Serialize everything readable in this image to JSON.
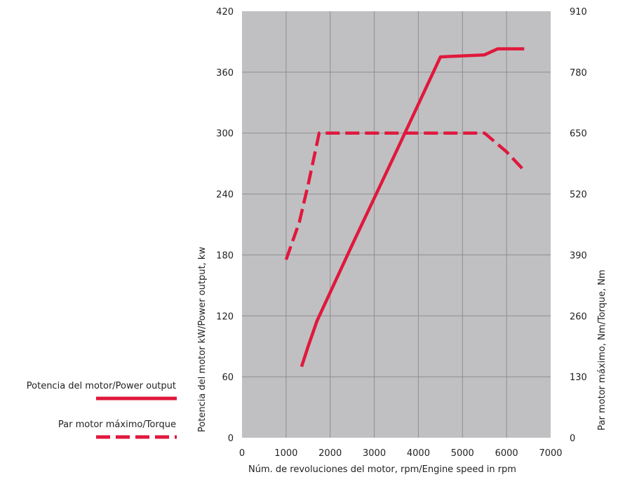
{
  "chart_data": {
    "type": "line",
    "colors": {
      "plot_bg": "#c0c0c2",
      "grid": "#8e8e90",
      "series": "#e0183c"
    },
    "x_axis": {
      "label": "Núm. de revoluciones del motor, rpm/Engine speed in rpm",
      "range": [
        0,
        7000
      ],
      "ticks": [
        "0",
        "1000",
        "2000",
        "3000",
        "4000",
        "5000",
        "6000",
        "7000"
      ]
    },
    "y_axis_left": {
      "label": "Potencia del motor kW/Power output, kw",
      "range": [
        0,
        420
      ],
      "ticks": [
        "0",
        "60",
        "120",
        "180",
        "240",
        "300",
        "360",
        "420"
      ]
    },
    "y_axis_right": {
      "label": "Par motor máximo, Nm/Torque, Nm",
      "range": [
        0,
        910
      ],
      "ticks": [
        "0",
        "130",
        "260",
        "390",
        "520",
        "650",
        "780",
        "910"
      ]
    },
    "grid": true,
    "legend_position": "left",
    "series": [
      {
        "name": "Potencia del motor/Power output",
        "axis": "left",
        "style": "solid",
        "points": [
          [
            1350,
            70
          ],
          [
            1500,
            90
          ],
          [
            1700,
            115
          ],
          [
            2500,
            190
          ],
          [
            3500,
            282
          ],
          [
            4500,
            375
          ],
          [
            5500,
            377
          ],
          [
            5800,
            383
          ],
          [
            6400,
            383
          ]
        ]
      },
      {
        "name": "Par motor máximo/Torque",
        "axis": "right",
        "style": "dashed",
        "points": [
          [
            1000,
            380
          ],
          [
            1300,
            460
          ],
          [
            1500,
            540
          ],
          [
            1750,
            650
          ],
          [
            2500,
            650
          ],
          [
            3500,
            650
          ],
          [
            4500,
            650
          ],
          [
            5500,
            650
          ],
          [
            6000,
            610
          ],
          [
            6400,
            570
          ]
        ]
      }
    ]
  }
}
